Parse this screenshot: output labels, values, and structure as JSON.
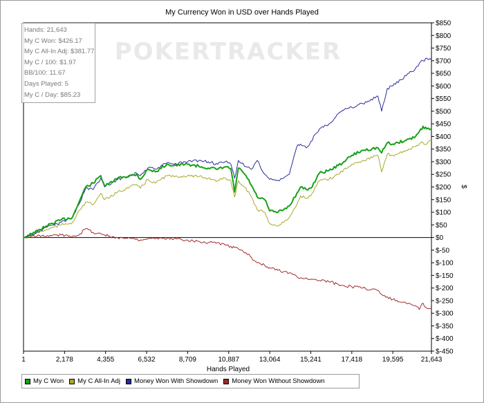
{
  "chart_data": {
    "type": "line",
    "title": "My Currency Won in USD over Hands Played",
    "xlabel": "Hands Played",
    "ylabel": "$",
    "xlim": [
      1,
      21643
    ],
    "ylim": [
      -450,
      850
    ],
    "x_ticks": [
      "1",
      "2,178",
      "4,355",
      "6,532",
      "8,709",
      "10,887",
      "13,064",
      "15,241",
      "17,418",
      "19,595",
      "21,643"
    ],
    "y_ticks": [
      "$850",
      "$800",
      "$750",
      "$700",
      "$650",
      "$600",
      "$550",
      "$500",
      "$450",
      "$400",
      "$350",
      "$300",
      "$250",
      "$200",
      "$150",
      "$100",
      "$50",
      "$0",
      "$-50",
      "$-100",
      "$-150",
      "$-200",
      "$-250",
      "$-300",
      "$-350",
      "$-400",
      "$-450"
    ],
    "watermark": "POKERTRACKER",
    "legend_position": "bottom",
    "series": [
      {
        "name": "My C Won",
        "color": "#16a016",
        "x": [
          1,
          600,
          1200,
          2000,
          2600,
          3000,
          3300,
          3700,
          4100,
          4300,
          4500,
          5000,
          6000,
          6200,
          6600,
          7000,
          7600,
          8000,
          8709,
          9300,
          9800,
          10300,
          10700,
          11000,
          11200,
          11400,
          11800,
          12100,
          12400,
          12800,
          13064,
          13500,
          13800,
          14100,
          14500,
          14700,
          15000,
          15241,
          15700,
          16200,
          16700,
          17000,
          17418,
          18000,
          18800,
          19000,
          19300,
          19595,
          20300,
          20800,
          21000,
          21200,
          21400,
          21643
        ],
        "values": [
          0,
          20,
          45,
          70,
          80,
          150,
          200,
          215,
          245,
          205,
          210,
          235,
          250,
          230,
          270,
          260,
          290,
          285,
          290,
          282,
          275,
          270,
          280,
          272,
          180,
          275,
          245,
          205,
          160,
          150,
          105,
          100,
          110,
          125,
          175,
          200,
          190,
          195,
          255,
          265,
          285,
          300,
          325,
          345,
          355,
          335,
          375,
          370,
          385,
          400,
          420,
          440,
          430,
          430
        ]
      },
      {
        "name": "My C All-In Adj",
        "color": "#a8a82a",
        "x": [
          1,
          600,
          1200,
          2000,
          2600,
          3000,
          3300,
          3700,
          4100,
          4300,
          4500,
          5000,
          6000,
          6200,
          6600,
          7000,
          7600,
          8000,
          8709,
          9300,
          9800,
          10300,
          10700,
          11000,
          11200,
          11400,
          11800,
          12100,
          12400,
          12800,
          13064,
          13500,
          13800,
          14100,
          14500,
          14700,
          15000,
          15241,
          15700,
          16200,
          16700,
          17000,
          17418,
          18000,
          18800,
          19000,
          19300,
          19595,
          20300,
          20800,
          21000,
          21200,
          21400,
          21643
        ],
        "values": [
          0,
          15,
          30,
          50,
          60,
          110,
          140,
          130,
          175,
          150,
          155,
          180,
          210,
          195,
          230,
          215,
          245,
          240,
          245,
          240,
          235,
          225,
          235,
          225,
          160,
          225,
          195,
          160,
          110,
          100,
          55,
          45,
          60,
          80,
          130,
          165,
          155,
          165,
          225,
          230,
          250,
          270,
          290,
          305,
          325,
          260,
          330,
          325,
          345,
          360,
          370,
          375,
          370,
          385
        ]
      },
      {
        "name": "Money Won With Showdown",
        "color": "#2a2a9a",
        "x": [
          1,
          600,
          1200,
          2000,
          2600,
          3000,
          3300,
          3700,
          4100,
          4300,
          4500,
          5000,
          6000,
          6200,
          6600,
          7000,
          7600,
          8000,
          8709,
          9300,
          9800,
          10300,
          10700,
          11000,
          11200,
          11400,
          11800,
          12100,
          12400,
          12800,
          13064,
          13500,
          13800,
          14100,
          14500,
          14700,
          15000,
          15241,
          15700,
          16200,
          16700,
          17000,
          17418,
          18000,
          18800,
          19000,
          19300,
          19595,
          20300,
          20800,
          21000,
          21200,
          21400,
          21643
        ],
        "values": [
          0,
          15,
          40,
          60,
          80,
          140,
          195,
          190,
          235,
          200,
          210,
          230,
          255,
          245,
          275,
          270,
          295,
          290,
          300,
          305,
          300,
          290,
          300,
          290,
          235,
          305,
          280,
          270,
          305,
          250,
          230,
          225,
          235,
          250,
          360,
          370,
          355,
          380,
          430,
          450,
          490,
          505,
          515,
          530,
          560,
          500,
          590,
          600,
          640,
          670,
          690,
          700,
          710,
          705
        ]
      },
      {
        "name": "Money Won Without Showdown",
        "color": "#a02a2a",
        "x": [
          1,
          600,
          1200,
          2000,
          2600,
          3000,
          3300,
          3700,
          4100,
          4300,
          4500,
          5000,
          6000,
          6200,
          6600,
          7000,
          7600,
          8000,
          8709,
          9300,
          9800,
          10300,
          10700,
          11000,
          11200,
          11400,
          11800,
          12100,
          12400,
          12800,
          13064,
          13500,
          13800,
          14100,
          14500,
          14700,
          15000,
          15241,
          15700,
          16200,
          16700,
          17000,
          17418,
          18000,
          18800,
          19000,
          19300,
          19595,
          20300,
          20800,
          21000,
          21200,
          21400,
          21643
        ],
        "values": [
          0,
          5,
          5,
          10,
          5,
          15,
          35,
          20,
          15,
          10,
          5,
          0,
          -5,
          -10,
          -5,
          -5,
          -5,
          -5,
          -10,
          -15,
          -20,
          -20,
          -30,
          -35,
          -40,
          -45,
          -60,
          -80,
          -100,
          -110,
          -120,
          -130,
          -135,
          -140,
          -155,
          -160,
          -160,
          -165,
          -170,
          -175,
          -185,
          -190,
          -195,
          -200,
          -210,
          -225,
          -235,
          -245,
          -260,
          -270,
          -285,
          -260,
          -280,
          -280
        ]
      }
    ]
  },
  "stats": [
    "Hands: 21,643",
    "My C Won: $426.17",
    "My C All-In Adj: $381.77",
    "My C / 100: $1.97",
    "BB/100: 11.67",
    "Days Played: 5",
    "My C / Day: $85.23"
  ]
}
